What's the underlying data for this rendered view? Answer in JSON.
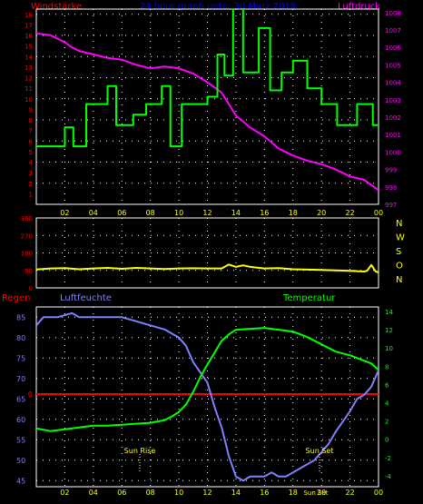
{
  "header": {
    "left_label": "Windstärke",
    "center_label": "24 hour graph upto: 30 Marz 2018",
    "right_label": "Luftdruck"
  },
  "colors": {
    "background": "#000000",
    "frame": "#ffffff",
    "grid_dots": "#ffffff",
    "wind_force": "#00ff00",
    "pressure": "#ff00ff",
    "wind_direction": "#ffff00",
    "rain": "#ff0000",
    "humidity": "#7f7fff",
    "temperature": "#00ff00",
    "left_axis_red": "#ff0000",
    "right_axis_magenta": "#ff00ff",
    "humidity_axis": "#7f7fff",
    "temperature_axis": "#00ff00",
    "dir_axis": "#ffff00",
    "hour_labels": "#ffff00",
    "header_center": "#0000ff"
  },
  "chart_data": [
    {
      "type": "line",
      "name": "top-panel",
      "x_ticks": [
        "02",
        "04",
        "06",
        "08",
        "10",
        "12",
        "14",
        "16",
        "18",
        "20",
        "22",
        "00"
      ],
      "left_axis": {
        "ticks": [
          "1",
          "2",
          "3",
          "4",
          "5",
          "6",
          "7",
          "8",
          "9",
          "10",
          "11",
          "12",
          "13",
          "14",
          "15",
          "16",
          "17",
          "18"
        ],
        "ylim": [
          0,
          18.5
        ]
      },
      "right_axis": {
        "ticks": [
          "997",
          "998",
          "999",
          "1000",
          "1001",
          "1002",
          "1003",
          "1004",
          "1005",
          "1006",
          "1007",
          "1008"
        ],
        "ylim": [
          997,
          1008.2
        ]
      },
      "series": [
        {
          "name": "Windstärke",
          "axis": "left",
          "step": true,
          "x": [
            0,
            2,
            2,
            2.6,
            2.6,
            3.5,
            3.5,
            5,
            5,
            5.6,
            5.6,
            6.8,
            6.8,
            7.7,
            7.7,
            8.8,
            8.8,
            9.4,
            9.4,
            10.2,
            10.2,
            12,
            12,
            12.7,
            12.7,
            13.2,
            13.2,
            13.8,
            13.8,
            14.5,
            14.5,
            15.6,
            15.6,
            16.4,
            16.4,
            17.2,
            17.2,
            18,
            18,
            19,
            19,
            20,
            20,
            21.1,
            21.1,
            22.5,
            22.5,
            23.6,
            23.6,
            24
          ],
          "values": [
            5.5,
            5.5,
            7.3,
            7.3,
            5.5,
            5.5,
            9.5,
            9.5,
            11.2,
            11.2,
            7.5,
            7.5,
            8.5,
            8.5,
            9.5,
            9.5,
            11.2,
            11.2,
            5.5,
            5.5,
            9.5,
            9.5,
            10.2,
            10.2,
            14.2,
            14.2,
            12.2,
            12.2,
            19,
            19,
            12.5,
            12.5,
            16.7,
            16.7,
            10.8,
            10.8,
            12.5,
            12.5,
            13.6,
            13.6,
            11,
            11,
            9.5,
            9.5,
            7.5,
            7.5,
            9.5,
            9.5,
            7.5,
            7.5
          ]
        },
        {
          "name": "Luftdruck",
          "axis": "right",
          "x": [
            0,
            1,
            2,
            2.5,
            3,
            4,
            5,
            6,
            7,
            8,
            9,
            10,
            11,
            12,
            13,
            14,
            15,
            16,
            17,
            18,
            19,
            20,
            21,
            22,
            23,
            24
          ],
          "values": [
            1006.8,
            1006.7,
            1006.3,
            1006.0,
            1005.8,
            1005.6,
            1005.4,
            1005.3,
            1005.0,
            1004.8,
            1004.9,
            1004.8,
            1004.5,
            1004.0,
            1003.4,
            1002.1,
            1001.4,
            1000.9,
            1000.2,
            999.8,
            999.5,
            999.3,
            999.0,
            998.6,
            998.4,
            997.8
          ]
        }
      ]
    },
    {
      "type": "line",
      "name": "wind-direction-panel",
      "x_ticks": [],
      "left_axis": {
        "ticks": [
          "0",
          "90",
          "180",
          "270",
          "360"
        ],
        "ylim": [
          0,
          360
        ]
      },
      "right_labels": [
        "N",
        "W",
        "S",
        "O",
        "N"
      ],
      "series": [
        {
          "name": "Windrichtung",
          "x": [
            0,
            1,
            2,
            3,
            4,
            5,
            6,
            7,
            8,
            9,
            10,
            11,
            12,
            13,
            13.5,
            14,
            14.5,
            15,
            16,
            17,
            18,
            19,
            20,
            21,
            22,
            23,
            23.2,
            23.5,
            23.8,
            24
          ],
          "values": [
            95,
            100,
            102,
            96,
            100,
            103,
            98,
            103,
            100,
            97,
            100,
            101,
            100,
            100,
            120,
            108,
            116,
            108,
            100,
            102,
            96,
            94,
            92,
            90,
            88,
            84,
            88,
            118,
            84,
            80
          ]
        }
      ]
    },
    {
      "type": "line",
      "name": "bottom-panel",
      "header": {
        "rain": "Regen",
        "humidity": "Luftfeuchte",
        "temperature": "Temperatur"
      },
      "x_ticks": [
        "02",
        "04",
        "06",
        "08",
        "10",
        "12",
        "14",
        "16",
        "18",
        "20",
        "22",
        "00"
      ],
      "left_axis": {
        "ticks": [
          "45",
          "50",
          "55",
          "60",
          "65",
          "70",
          "75",
          "80",
          "85"
        ],
        "ylim": [
          43.5,
          87.5
        ]
      },
      "right_axis": {
        "ticks": [
          "-4",
          "-2",
          "0",
          "2",
          "4",
          "6",
          "8",
          "10",
          "12",
          "14"
        ],
        "ylim": [
          -5.2,
          14.5
        ]
      },
      "rain_axis": {
        "tick": "0"
      },
      "annotations": {
        "sun_rise": "Sun Rise",
        "sun_set": "Sun Set",
        "bottom_mark": "Sun Set"
      },
      "series": [
        {
          "name": "Regen",
          "values_note": "",
          "x": [
            0,
            24
          ],
          "values": [
            0,
            0
          ]
        },
        {
          "name": "Luftfeuchte",
          "axis": "left",
          "x": [
            0,
            0.5,
            1.5,
            2.5,
            3,
            4,
            5,
            6,
            7,
            8,
            9,
            9.5,
            10,
            10.5,
            11,
            12,
            12.5,
            13,
            13.5,
            14,
            14.5,
            15,
            16,
            16.5,
            17,
            17.5,
            18,
            19,
            19.5,
            20,
            20.5,
            21,
            22,
            22.5,
            23,
            23.5,
            24
          ],
          "values": [
            83,
            85,
            85,
            86,
            85,
            85,
            85,
            85,
            84,
            83,
            82,
            81,
            80,
            78,
            74,
            69,
            63,
            58,
            51,
            46,
            45,
            46,
            46,
            47,
            46,
            46,
            47,
            49,
            50,
            52,
            54,
            57,
            62,
            65,
            66,
            68,
            72
          ]
        },
        {
          "name": "Temperatur",
          "axis": "right",
          "x": [
            0,
            1,
            2,
            3,
            4,
            5,
            6,
            7,
            8,
            9,
            9.5,
            10,
            10.5,
            11,
            11.5,
            12,
            12.5,
            13,
            13.5,
            14,
            15,
            16,
            17,
            18,
            19,
            20,
            21,
            22,
            23,
            23.5,
            24
          ],
          "values": [
            1.2,
            0.9,
            1.1,
            1.3,
            1.5,
            1.5,
            1.6,
            1.7,
            1.8,
            2.1,
            2.5,
            3.0,
            3.8,
            5.2,
            6.8,
            8.2,
            9.5,
            10.8,
            11.5,
            12.0,
            12.1,
            12.2,
            12.0,
            11.8,
            11.2,
            10.4,
            9.6,
            9.2,
            8.6,
            8.3,
            7.6
          ]
        }
      ]
    }
  ]
}
